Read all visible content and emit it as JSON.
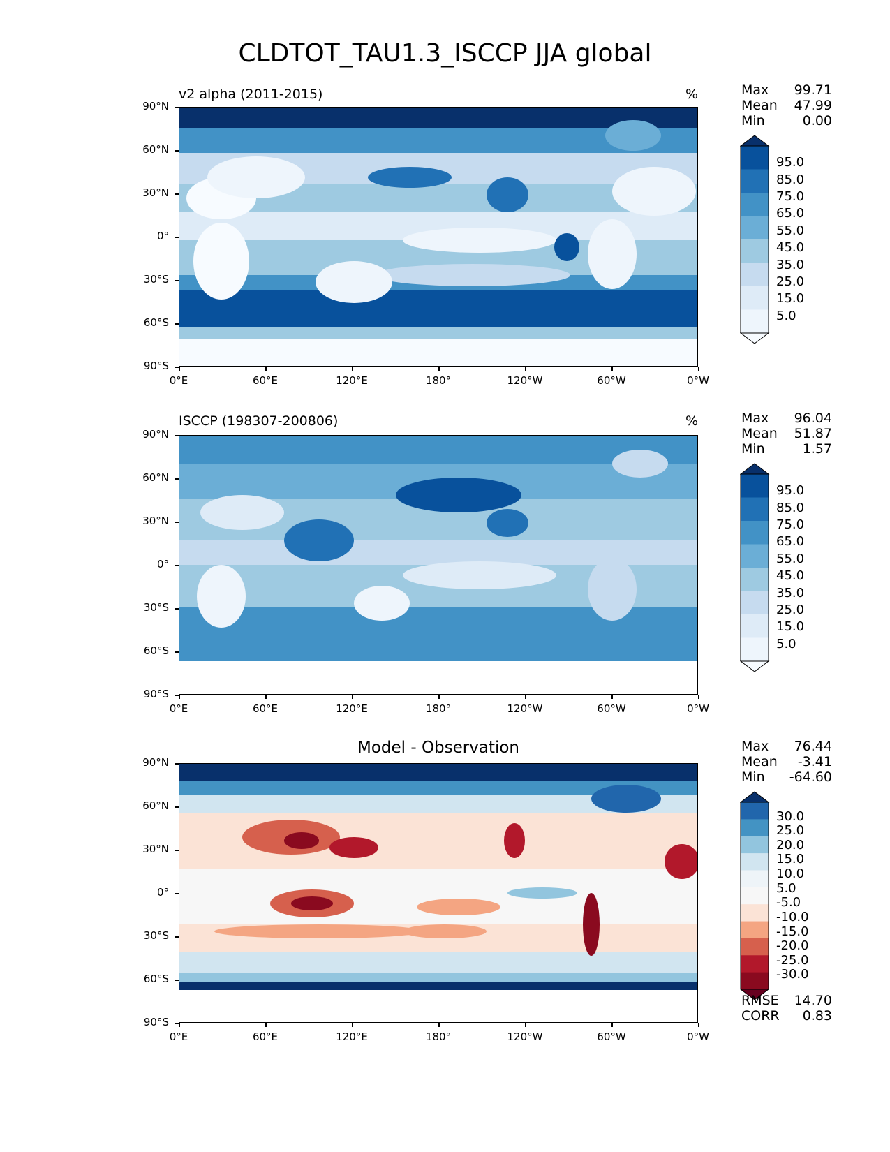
{
  "title": "CLDTOT_TAU1.3_ISCCP JJA global",
  "lat_labels": [
    "90°N",
    "60°N",
    "30°N",
    "0°",
    "30°S",
    "60°S",
    "90°S"
  ],
  "lon_labels": [
    "0°E",
    "60°E",
    "120°E",
    "180°",
    "120°W",
    "60°W",
    "0°W"
  ],
  "panels": [
    {
      "id": "test",
      "title_left": "v2 alpha (2011-2015)",
      "title_center": "",
      "units": "%",
      "stats": {
        "max_label": "Max",
        "max": "99.71",
        "mean_label": "Mean",
        "mean": "47.99",
        "min_label": "Min",
        "min": "0.00"
      },
      "colorbar": {
        "labels": [
          "95.0",
          "85.0",
          "75.0",
          "65.0",
          "55.0",
          "45.0",
          "35.0",
          "25.0",
          "15.0",
          "5.0"
        ],
        "colors": [
          "#08306b",
          "#08519c",
          "#2171b5",
          "#4292c6",
          "#6baed6",
          "#9ecae1",
          "#c6dbef",
          "#deebf7",
          "#eef5fc",
          "#f7fbff"
        ]
      }
    },
    {
      "id": "ref",
      "title_left": "ISCCP (198307-200806)",
      "title_center": "",
      "units": "%",
      "stats": {
        "max_label": "Max",
        "max": "96.04",
        "mean_label": "Mean",
        "mean": "51.87",
        "min_label": "Min",
        "min": "1.57"
      },
      "colorbar": {
        "labels": [
          "95.0",
          "85.0",
          "75.0",
          "65.0",
          "55.0",
          "45.0",
          "35.0",
          "25.0",
          "15.0",
          "5.0"
        ],
        "colors": [
          "#08306b",
          "#08519c",
          "#2171b5",
          "#4292c6",
          "#6baed6",
          "#9ecae1",
          "#c6dbef",
          "#deebf7",
          "#eef5fc",
          "#f7fbff"
        ]
      }
    },
    {
      "id": "diff",
      "title_left": "",
      "title_center": "Model - Observation",
      "units": "",
      "stats": {
        "max_label": "Max",
        "max": "76.44",
        "mean_label": "Mean",
        "mean": "-3.41",
        "min_label": "Min",
        "min": "-64.60"
      },
      "colorbar": {
        "labels": [
          "30.0",
          "25.0",
          "20.0",
          "15.0",
          "10.0",
          "5.0",
          "-5.0",
          "-10.0",
          "-15.0",
          "-20.0",
          "-25.0",
          "-30.0"
        ],
        "colors": [
          "#08306b",
          "#2166ac",
          "#4393c3",
          "#92c5de",
          "#d1e5f0",
          "#eef4f8",
          "#f7f7f7",
          "#fbe3d6",
          "#f4a582",
          "#d6604d",
          "#b2182b",
          "#8a0a1f",
          "#67001f"
        ]
      },
      "rmse_label": "RMSE",
      "rmse": "14.70",
      "corr_label": "CORR",
      "corr": "0.83"
    }
  ]
}
